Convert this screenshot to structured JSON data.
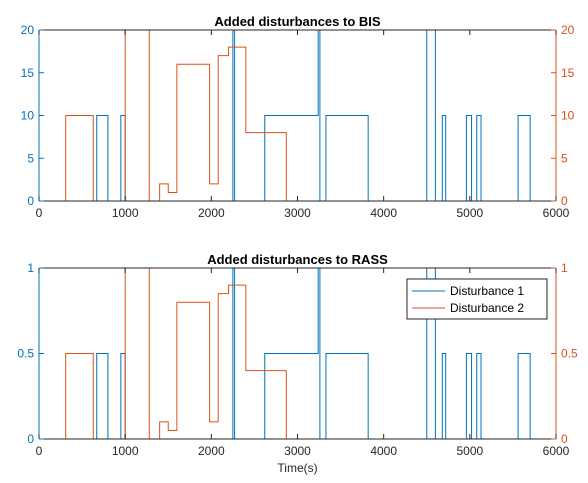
{
  "colors": {
    "series1": "#0072bd",
    "series2": "#d95319",
    "axis": "#262626",
    "frame": "#262626",
    "background": "#ffffff"
  },
  "chart_data": [
    {
      "type": "line",
      "title": "Added disturbances to BIS",
      "xlabel": "",
      "ylabel": "",
      "xlim": [
        0,
        6000
      ],
      "ylim": [
        0,
        20
      ],
      "y2lim": [
        0,
        20
      ],
      "xticks": [
        0,
        1000,
        2000,
        3000,
        4000,
        5000,
        6000
      ],
      "yticks": [
        0,
        5,
        10,
        15,
        20
      ],
      "y2ticks": [
        0,
        5,
        10,
        15,
        20
      ],
      "grid": false,
      "legend": null,
      "series": [
        {
          "axis": "left",
          "values_xy": [
            [
              0,
              0
            ],
            [
              670,
              0
            ],
            [
              670,
              10
            ],
            [
              800,
              10
            ],
            [
              800,
              0
            ],
            [
              950,
              0
            ],
            [
              950,
              10
            ],
            [
              1000,
              10
            ],
            [
              1000,
              0
            ],
            [
              2250,
              0
            ],
            [
              2250,
              20
            ],
            [
              2270,
              20
            ],
            [
              2270,
              0
            ],
            [
              2620,
              0
            ],
            [
              2620,
              10
            ],
            [
              3240,
              10
            ],
            [
              3240,
              20
            ],
            [
              3260,
              20
            ],
            [
              3260,
              0
            ],
            [
              3330,
              0
            ],
            [
              3330,
              10
            ],
            [
              3820,
              10
            ],
            [
              3820,
              0
            ],
            [
              4500,
              0
            ],
            [
              4500,
              20
            ],
            [
              4600,
              20
            ],
            [
              4600,
              0
            ],
            [
              4680,
              0
            ],
            [
              4680,
              10
            ],
            [
              4720,
              10
            ],
            [
              4720,
              0
            ],
            [
              4960,
              0
            ],
            [
              4960,
              10
            ],
            [
              5020,
              10
            ],
            [
              5020,
              0
            ],
            [
              5080,
              0
            ],
            [
              5080,
              10
            ],
            [
              5130,
              10
            ],
            [
              5130,
              0
            ],
            [
              5560,
              0
            ],
            [
              5560,
              10
            ],
            [
              5700,
              10
            ],
            [
              5700,
              0
            ]
          ]
        },
        {
          "axis": "right",
          "values_xy": [
            [
              0,
              0
            ],
            [
              310,
              0
            ],
            [
              310,
              10
            ],
            [
              630,
              10
            ],
            [
              630,
              0
            ],
            [
              1000,
              0
            ],
            [
              1000,
              20
            ],
            [
              1280,
              20
            ],
            [
              1280,
              0
            ],
            [
              1400,
              0
            ],
            [
              1400,
              2
            ],
            [
              1500,
              2
            ],
            [
              1500,
              1
            ],
            [
              1600,
              1
            ],
            [
              1600,
              16
            ],
            [
              1980,
              16
            ],
            [
              1980,
              2
            ],
            [
              2080,
              2
            ],
            [
              2080,
              17
            ],
            [
              2200,
              17
            ],
            [
              2200,
              18
            ],
            [
              2400,
              18
            ],
            [
              2400,
              8
            ],
            [
              2870,
              8
            ],
            [
              2870,
              0
            ],
            [
              6000,
              0
            ]
          ]
        }
      ]
    },
    {
      "type": "line",
      "title": "Added disturbances to RASS",
      "xlabel": "Time(s)",
      "ylabel": "",
      "xlim": [
        0,
        6000
      ],
      "ylim": [
        0,
        1
      ],
      "y2lim": [
        0,
        1
      ],
      "xticks": [
        0,
        1000,
        2000,
        3000,
        4000,
        5000,
        6000
      ],
      "yticks": [
        0,
        0.5,
        1
      ],
      "y2ticks": [
        0,
        0.5,
        1
      ],
      "grid": false,
      "legend": {
        "placement": "top-right",
        "entries": [
          "Disturbance 1",
          "Disturbance 2"
        ]
      },
      "series": [
        {
          "name": "Disturbance 1",
          "axis": "left",
          "values_xy": [
            [
              0,
              0
            ],
            [
              670,
              0
            ],
            [
              670,
              0.5
            ],
            [
              800,
              0.5
            ],
            [
              800,
              0
            ],
            [
              950,
              0
            ],
            [
              950,
              0.5
            ],
            [
              1000,
              0.5
            ],
            [
              1000,
              0
            ],
            [
              2250,
              0
            ],
            [
              2250,
              1
            ],
            [
              2270,
              1
            ],
            [
              2270,
              0
            ],
            [
              2620,
              0
            ],
            [
              2620,
              0.5
            ],
            [
              3240,
              0.5
            ],
            [
              3240,
              1
            ],
            [
              3260,
              1
            ],
            [
              3260,
              0
            ],
            [
              3330,
              0
            ],
            [
              3330,
              0.5
            ],
            [
              3820,
              0.5
            ],
            [
              3820,
              0
            ],
            [
              4500,
              0
            ],
            [
              4500,
              1
            ],
            [
              4600,
              1
            ],
            [
              4600,
              0
            ],
            [
              4680,
              0
            ],
            [
              4680,
              0.5
            ],
            [
              4720,
              0.5
            ],
            [
              4720,
              0
            ],
            [
              4960,
              0
            ],
            [
              4960,
              0.5
            ],
            [
              5020,
              0.5
            ],
            [
              5020,
              0
            ],
            [
              5080,
              0
            ],
            [
              5080,
              0.5
            ],
            [
              5130,
              0.5
            ],
            [
              5130,
              0
            ],
            [
              5560,
              0
            ],
            [
              5560,
              0.5
            ],
            [
              5700,
              0.5
            ],
            [
              5700,
              0
            ]
          ]
        },
        {
          "name": "Disturbance 2",
          "axis": "right",
          "values_xy": [
            [
              0,
              0
            ],
            [
              310,
              0
            ],
            [
              310,
              0.5
            ],
            [
              630,
              0.5
            ],
            [
              630,
              0
            ],
            [
              1000,
              0
            ],
            [
              1000,
              1
            ],
            [
              1280,
              1
            ],
            [
              1280,
              0
            ],
            [
              1400,
              0
            ],
            [
              1400,
              0.1
            ],
            [
              1500,
              0.1
            ],
            [
              1500,
              0.05
            ],
            [
              1600,
              0.05
            ],
            [
              1600,
              0.8
            ],
            [
              1980,
              0.8
            ],
            [
              1980,
              0.1
            ],
            [
              2080,
              0.1
            ],
            [
              2080,
              0.85
            ],
            [
              2200,
              0.85
            ],
            [
              2200,
              0.9
            ],
            [
              2400,
              0.9
            ],
            [
              2400,
              0.4
            ],
            [
              2870,
              0.4
            ],
            [
              2870,
              0
            ],
            [
              6000,
              0
            ]
          ]
        }
      ]
    }
  ]
}
